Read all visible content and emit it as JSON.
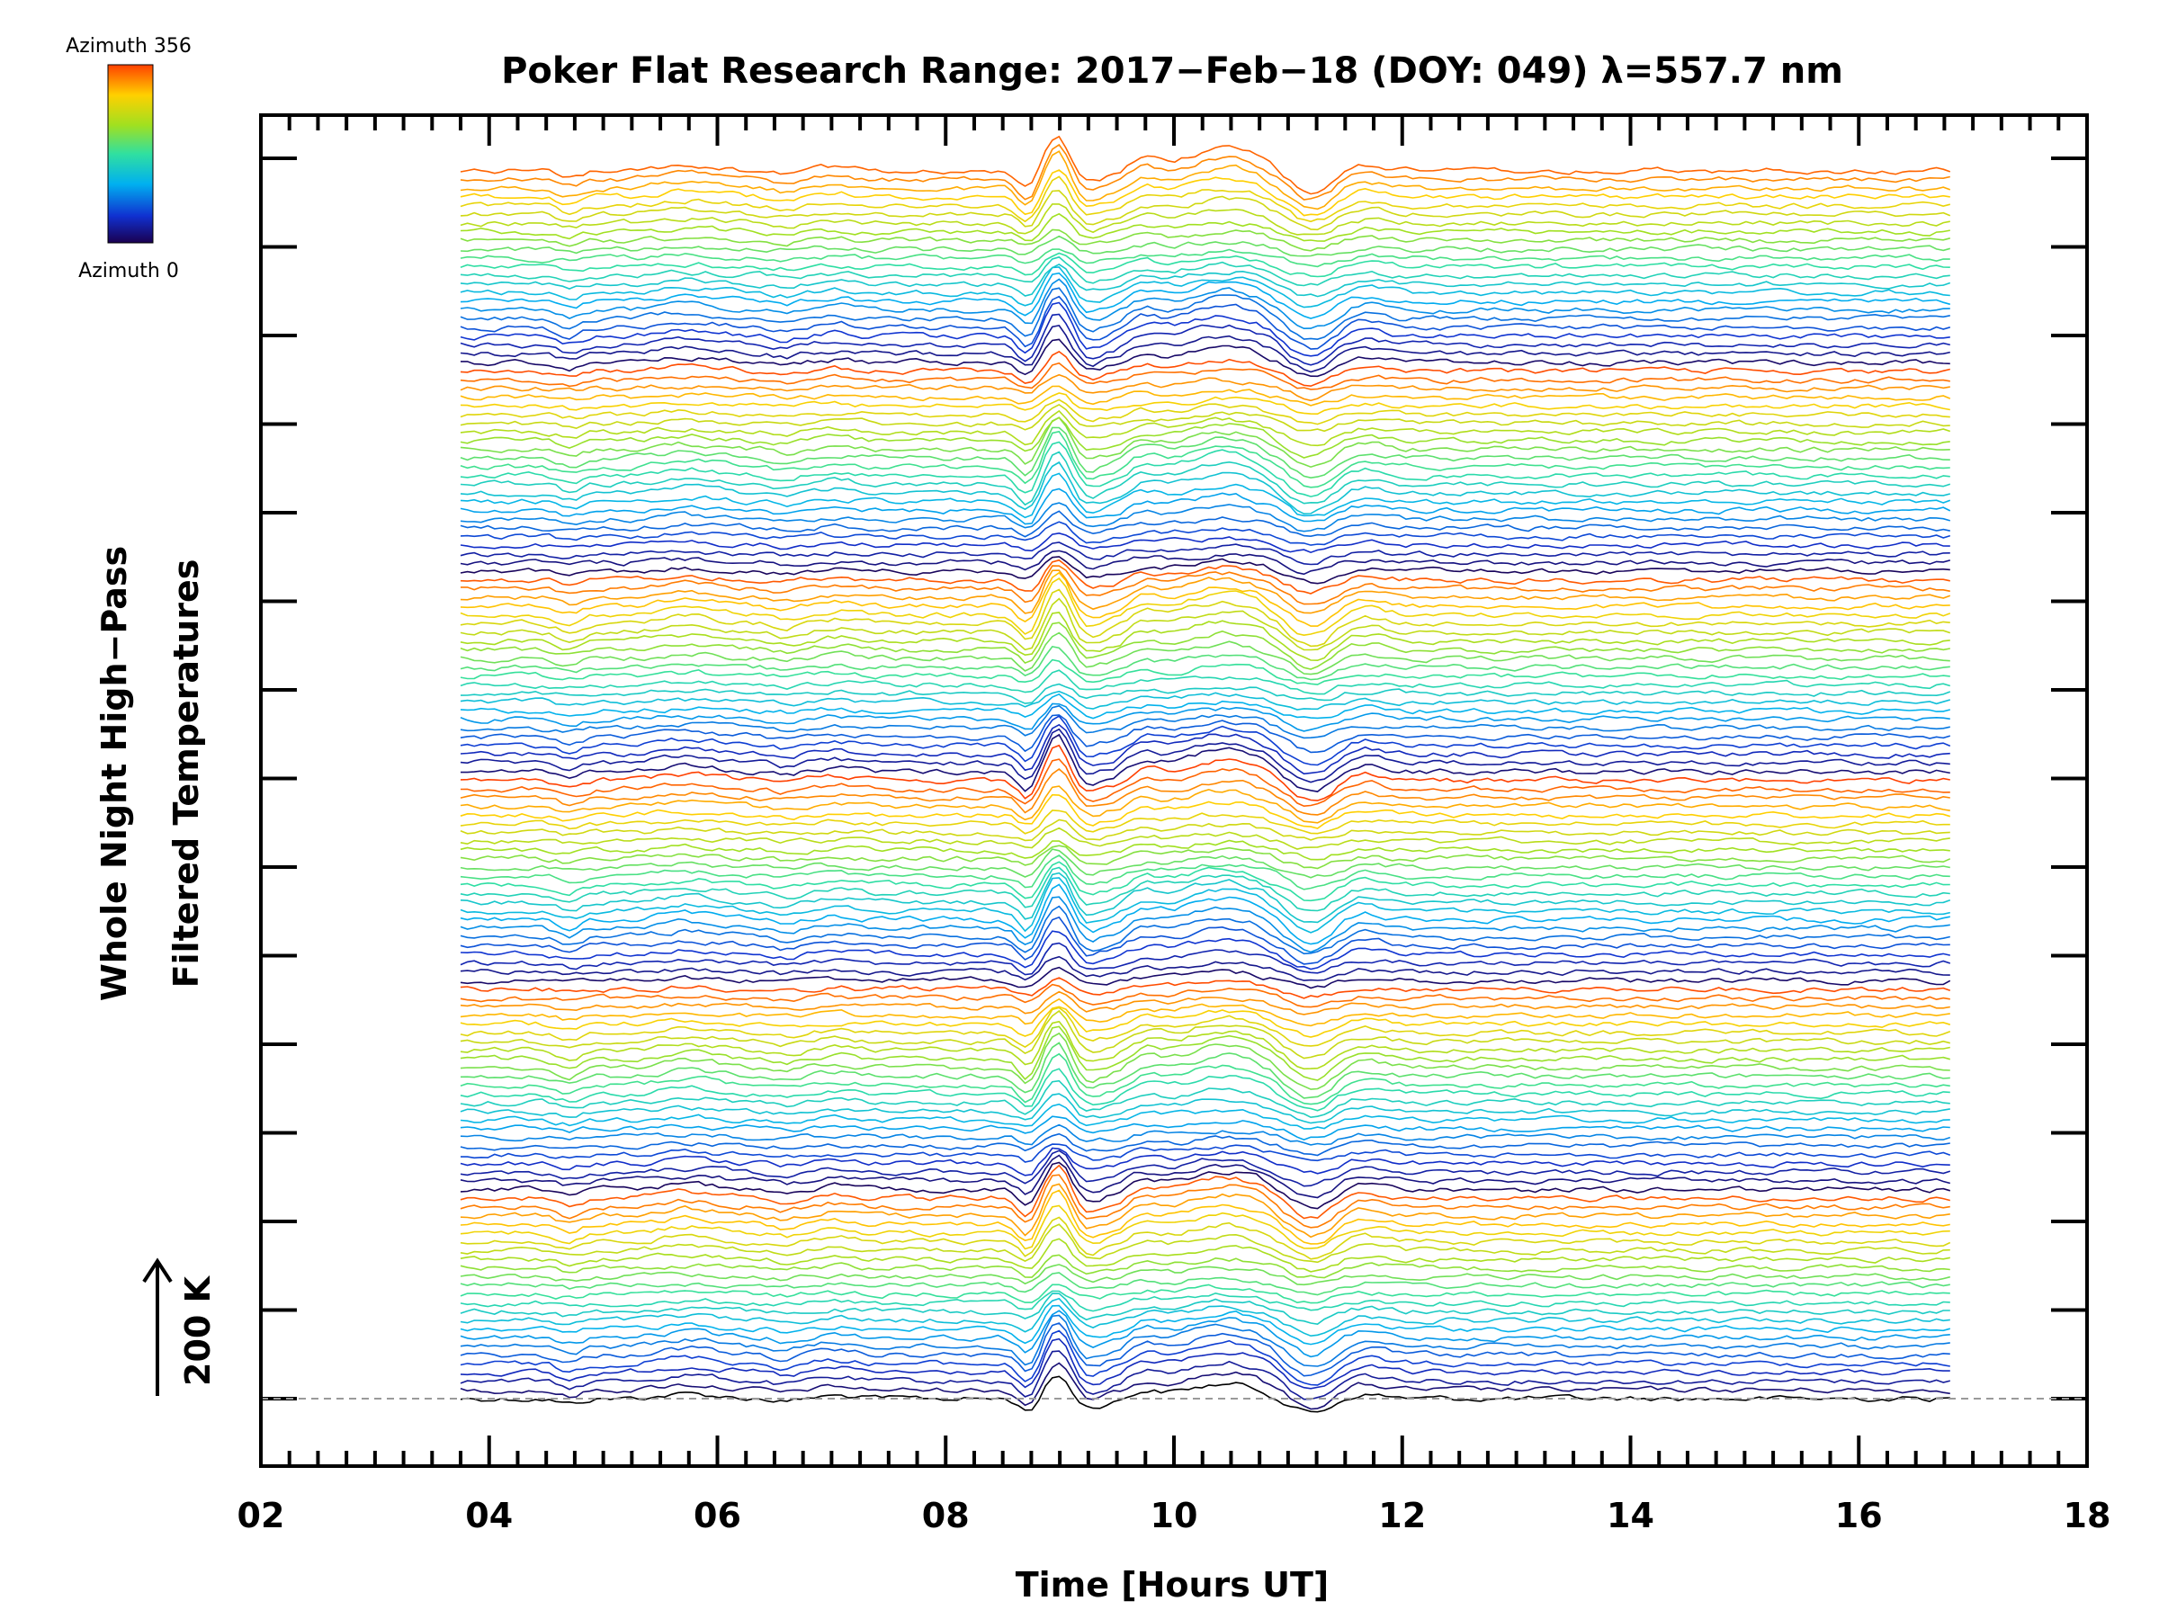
{
  "chart_data": {
    "type": "line",
    "title": "Poker Flat Research Range: 2017−Feb−18 (DOY: 049) λ=557.7 nm",
    "xlabel": "Time [Hours UT]",
    "ylabel_line1": "Whole Night High−Pass",
    "ylabel_line2": "Filtered Temperatures",
    "scale_label": "200 K",
    "xlim": [
      2,
      18
    ],
    "x_ticks": [
      "02",
      "04",
      "06",
      "08",
      "10",
      "12",
      "14",
      "16",
      "18"
    ],
    "x_tick_values": [
      2,
      4,
      6,
      8,
      10,
      12,
      14,
      16,
      18
    ],
    "data_x_range": [
      3.75,
      16.8
    ],
    "num_traces": 142,
    "num_bands": 6,
    "baseline_dashed": true,
    "colorbar": {
      "max_label": "Azimuth 356",
      "min_label": "Azimuth 0",
      "colors": [
        "#1a0050",
        "#1030d0",
        "#00b0f0",
        "#30e0a0",
        "#a0e020",
        "#ffd000",
        "#ff4000"
      ]
    },
    "features": [
      {
        "time": 8.75,
        "kind": "dip"
      },
      {
        "time": 8.98,
        "kind": "spike"
      },
      {
        "time": 10.4,
        "kind": "bump"
      },
      {
        "time": 11.2,
        "kind": "dip"
      },
      {
        "time": 4.7,
        "kind": "dip"
      },
      {
        "time": 5.75,
        "kind": "bump"
      }
    ]
  }
}
